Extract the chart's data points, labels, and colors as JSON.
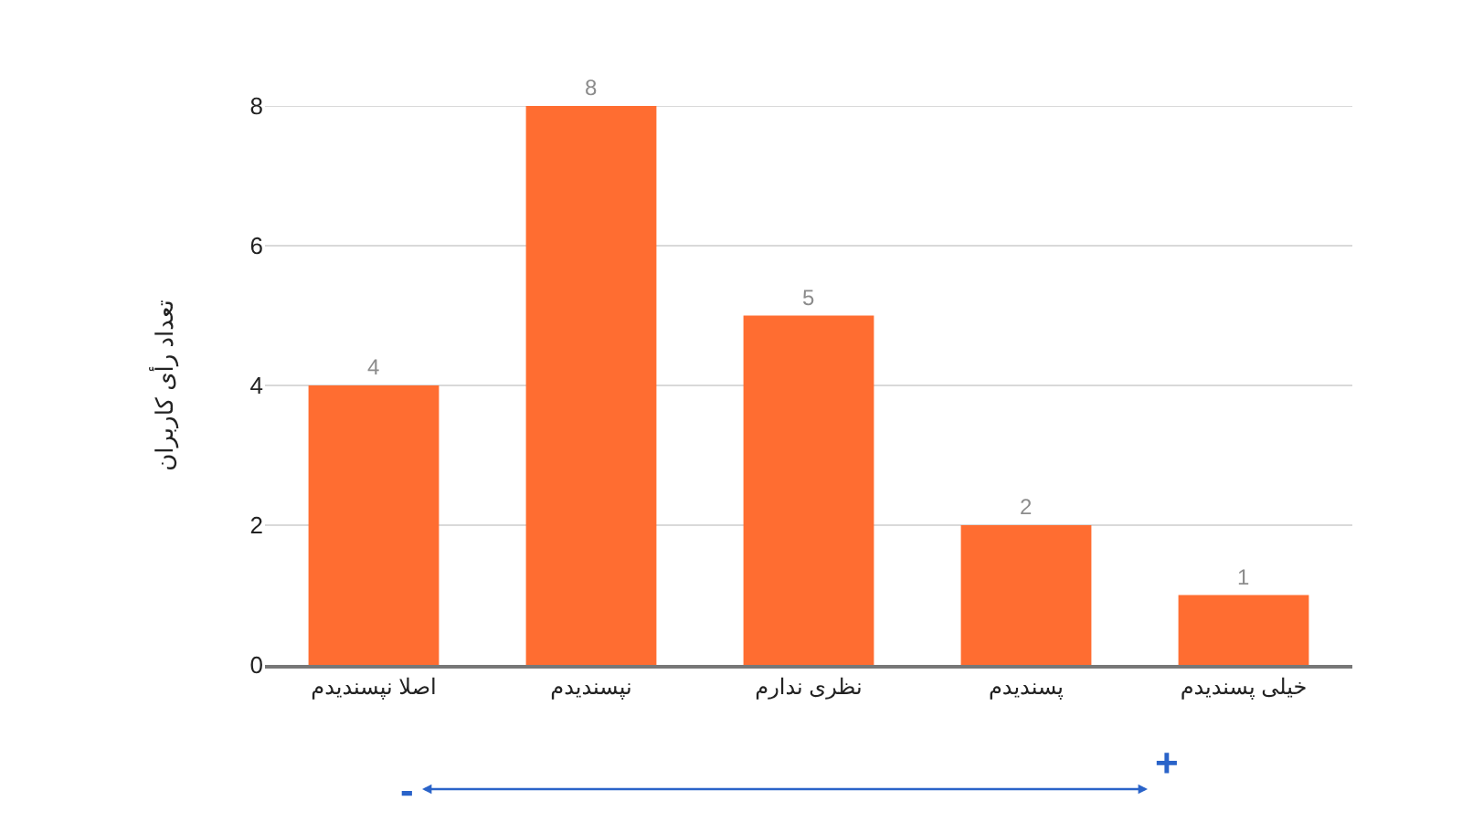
{
  "chart_data": {
    "type": "bar",
    "ylabel": "تعداد رأی کاربران",
    "categories": [
      "اصلا نپسندیدم",
      "نپسندیدم",
      "نظری ندارم",
      "پسندیدم",
      "خیلی پسندیدم"
    ],
    "values": [
      4,
      8,
      5,
      2,
      1
    ],
    "color": "#ff6d31",
    "ylim": [
      0,
      8
    ],
    "yticks": [
      0,
      2,
      4,
      6,
      8
    ],
    "grid": "y",
    "data_labels": true,
    "legend": false,
    "annotations": [
      "-",
      "+"
    ]
  }
}
